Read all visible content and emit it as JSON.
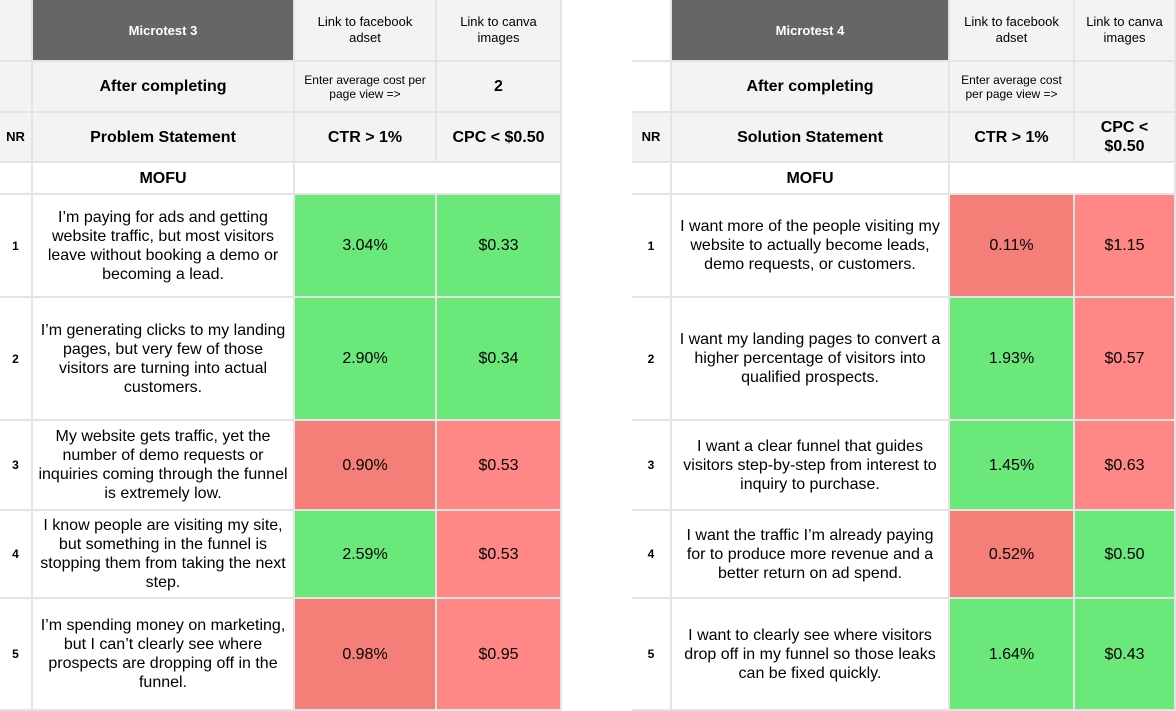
{
  "left": {
    "title": "Microtest 3",
    "col_fb": "Link to facebook adset",
    "col_canva": "Link to canva images",
    "after": "After completing",
    "enter": "Enter average cost per page view =>",
    "enter_value": "2",
    "nr": "NR",
    "statement": "Problem Statement",
    "ctr": "CTR > 1%",
    "cpc": "CPC < $0.50",
    "section": "MOFU",
    "rows": [
      {
        "nr": "1",
        "text": "I’m paying for ads and getting website traffic, but most visitors leave without booking a demo or becoming a lead.",
        "ctr": "3.04%",
        "cpc": "$0.33",
        "ctr_color": "#6ae87a",
        "cpc_color": "#6ae87a"
      },
      {
        "nr": "2",
        "text": "I’m generating clicks to my landing pages, but very few of those visitors are turning into actual customers.",
        "ctr": "2.90%",
        "cpc": "$0.34",
        "ctr_color": "#6ae87a",
        "cpc_color": "#6ae87a"
      },
      {
        "nr": "3",
        "text": "My website gets traffic, yet the number of demo requests or inquiries coming through the funnel is extremely low.",
        "ctr": "0.90%",
        "cpc": "$0.53",
        "ctr_color": "#f47f78",
        "cpc_color": "#ff8886"
      },
      {
        "nr": "4",
        "text": "I know people are visiting my site, but something in the funnel is stopping them from taking the next step.",
        "ctr": "2.59%",
        "cpc": "$0.53",
        "ctr_color": "#6ae87a",
        "cpc_color": "#ff8886"
      },
      {
        "nr": "5",
        "text": "I’m spending money on marketing, but I can’t clearly see where prospects are dropping off in the funnel.",
        "ctr": "0.98%",
        "cpc": "$0.95",
        "ctr_color": "#f47f78",
        "cpc_color": "#ff8886"
      }
    ]
  },
  "right": {
    "title": "Microtest 4",
    "col_fb": "Link to facebook adset",
    "col_canva": "Link to canva images",
    "after": "After completing",
    "enter": "Enter average cost per page view =>",
    "nr": "NR",
    "statement": "Solution Statement",
    "ctr": "CTR > 1%",
    "cpc": "CPC < $0.50",
    "section": "MOFU",
    "rows": [
      {
        "nr": "1",
        "text": "I want more of the people visiting my website to actually become leads, demo requests, or customers.",
        "ctr": "0.11%",
        "cpc": "$1.15",
        "ctr_color": "#f47f78",
        "cpc_color": "#ff8886"
      },
      {
        "nr": "2",
        "text": "I want my landing pages to convert a higher percentage of visitors into qualified prospects.",
        "ctr": "1.93%",
        "cpc": "$0.57",
        "ctr_color": "#6ae87a",
        "cpc_color": "#ff8886"
      },
      {
        "nr": "3",
        "text": "I want a clear funnel that guides visitors step-by-step from interest to inquiry to purchase.",
        "ctr": "1.45%",
        "cpc": "$0.63",
        "ctr_color": "#6ae87a",
        "cpc_color": "#ff8886"
      },
      {
        "nr": "4",
        "text": "I want the traffic I’m already paying for to produce more revenue and a better return on ad spend.",
        "ctr": "0.52%",
        "cpc": "$0.50",
        "ctr_color": "#f47f78",
        "cpc_color": "#6ae87a"
      },
      {
        "nr": "5",
        "text": "I want to clearly see where visitors drop off in my funnel so those leaks can be fixed quickly.",
        "ctr": "1.64%",
        "cpc": "$0.43",
        "ctr_color": "#6ae87a",
        "cpc_color": "#6ae87a"
      }
    ]
  }
}
